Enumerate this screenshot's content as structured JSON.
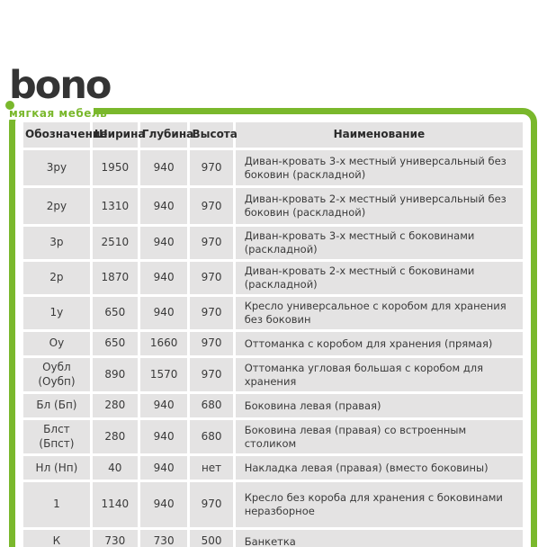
{
  "brand": {
    "logo_text": "bono",
    "tagline": "мягкая мебель",
    "accent_color": "#7ab82c",
    "logo_color": "#343434"
  },
  "table": {
    "headers": [
      "Обозначение",
      "Ширина",
      "Глубина",
      "Высота",
      "Наименование"
    ],
    "rows": [
      {
        "code": "3ру",
        "width": "1950",
        "depth": "940",
        "height": "970",
        "name": "Диван-кровать 3-х местный универсальный без боковин (раскладной)"
      },
      {
        "code": "2ру",
        "width": "1310",
        "depth": "940",
        "height": "970",
        "name": "Диван-кровать 2-х местный универсальный без боковин (раскладной)"
      },
      {
        "code": "3р",
        "width": "2510",
        "depth": "940",
        "height": "970",
        "name": "Диван-кровать 3-х местный с боковинами (раскладной)"
      },
      {
        "code": "2р",
        "width": "1870",
        "depth": "940",
        "height": "970",
        "name": "Диван-кровать 2-х местный с боковинами (раскладной)"
      },
      {
        "code": "1у",
        "width": "650",
        "depth": "940",
        "height": "970",
        "name": "Кресло универсальное с коробом для хранения без боковин"
      },
      {
        "code": "Оу",
        "width": "650",
        "depth": "1660",
        "height": "970",
        "name": "Оттоманка с коробом для хранения (прямая)"
      },
      {
        "code": "Оубл (Оубп)",
        "width": "890",
        "depth": "1570",
        "height": "970",
        "name": "Оттоманка угловая большая с коробом для хранения"
      },
      {
        "code": "Бл (Бп)",
        "width": "280",
        "depth": "940",
        "height": "680",
        "name": "Боковина левая (правая)"
      },
      {
        "code": "Блст (Бпст)",
        "width": "280",
        "depth": "940",
        "height": "680",
        "name": "Боковина левая (правая) со встроенным столиком"
      },
      {
        "code": "Нл (Нп)",
        "width": "40",
        "depth": "940",
        "height": "нет",
        "name": "Накладка левая (правая) (вместо боковины)"
      },
      {
        "code": "1",
        "width": "1140",
        "depth": "940",
        "height": "970",
        "name": "Кресло  без короба для хранения с боковинами неразборное"
      },
      {
        "code": "К",
        "width": "730",
        "depth": "730",
        "height": "500",
        "name": "Банкетка"
      }
    ]
  }
}
